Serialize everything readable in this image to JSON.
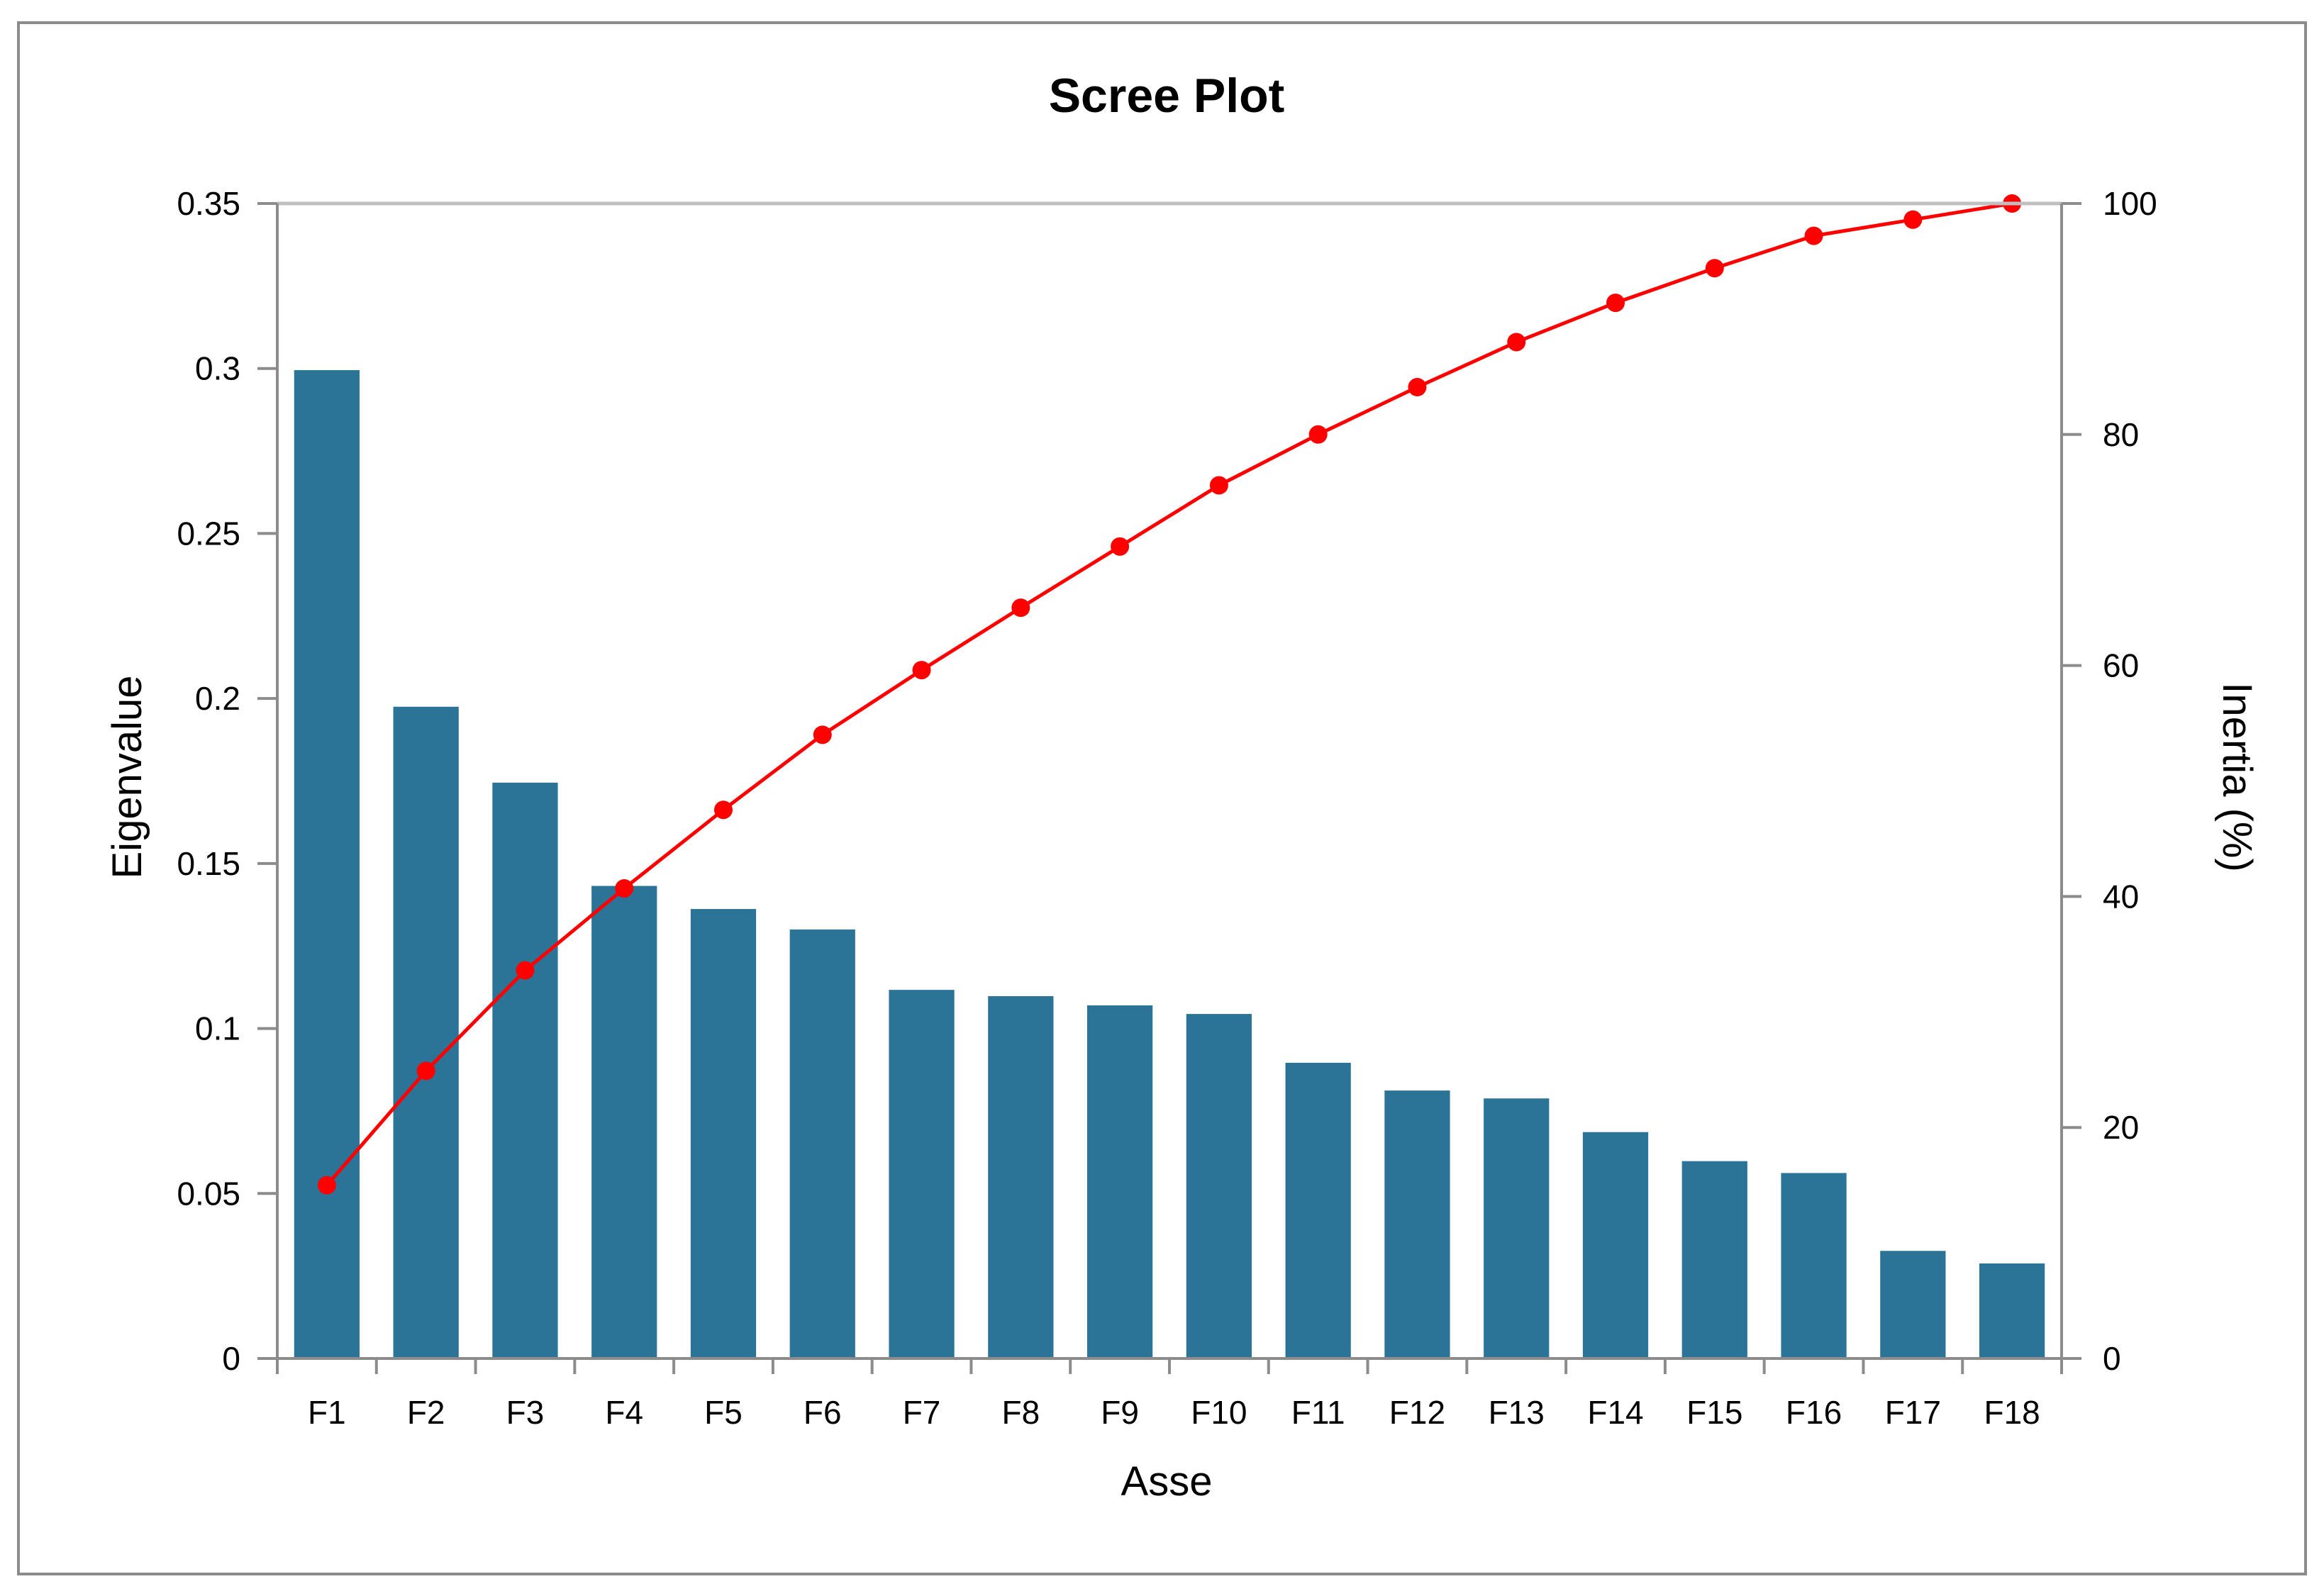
{
  "chart_data": {
    "type": "bar",
    "title": "Scree Plot",
    "xlabel": "Asse",
    "ylabel": "Eigenvalue",
    "y2label": "Inertia (%)",
    "categories": [
      "F1",
      "F2",
      "F3",
      "F4",
      "F5",
      "F6",
      "F7",
      "F8",
      "F9",
      "F10",
      "F11",
      "F12",
      "F13",
      "F14",
      "F15",
      "F16",
      "F17",
      "F18"
    ],
    "ylim": [
      0,
      0.35
    ],
    "y_ticks": [
      "0",
      "0.05",
      "0.1",
      "0.15",
      "0.2",
      "0.25",
      "0.3",
      "0.35"
    ],
    "y2lim": [
      0,
      100
    ],
    "y2_ticks": [
      "0",
      "20",
      "40",
      "60",
      "80",
      "100"
    ],
    "grid": false,
    "series": [
      {
        "type": "bar",
        "axis": "left",
        "color": "#2b7497",
        "values": [
          0.2995,
          0.1975,
          0.1745,
          0.1432,
          0.1362,
          0.13,
          0.1117,
          0.1098,
          0.107,
          0.1044,
          0.0896,
          0.0812,
          0.0788,
          0.0686,
          0.0598,
          0.0562,
          0.0326,
          0.0288
        ]
      },
      {
        "type": "line",
        "axis": "right",
        "color": "#ff0000",
        "values": [
          15.0,
          24.9,
          33.6,
          40.7,
          47.5,
          54.0,
          59.6,
          65.0,
          70.3,
          75.6,
          80.0,
          84.1,
          88.0,
          91.4,
          94.4,
          97.2,
          98.6,
          100.0
        ]
      }
    ]
  }
}
